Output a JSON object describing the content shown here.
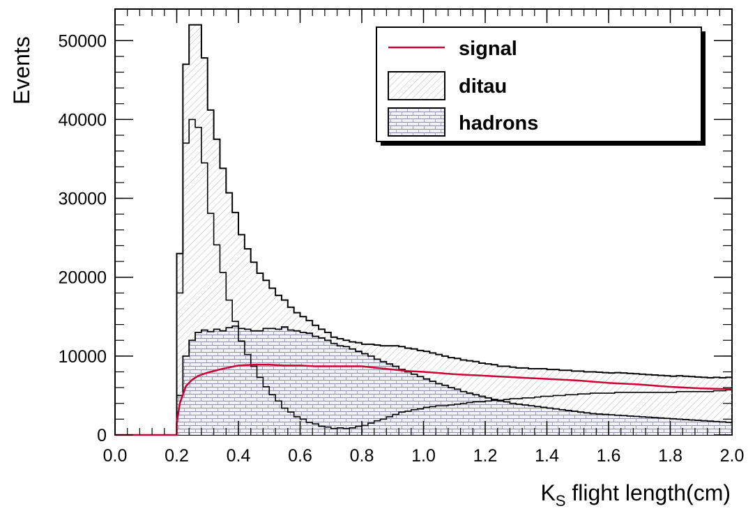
{
  "chart_data": {
    "type": "histogram-stack",
    "xlabel": "K",
    "xlabel_sub": "S",
    "xlabel_rest": " flight length(cm)",
    "ylabel": "Events",
    "xlim": [
      0.0,
      2.0
    ],
    "ylim": [
      0,
      54000
    ],
    "bin_width": 0.02,
    "x_ticks": [
      "0.0",
      "0.2",
      "0.4",
      "0.6",
      "0.8",
      "1.0",
      "1.2",
      "1.4",
      "1.6",
      "1.8",
      "2.0"
    ],
    "x_tick_values": [
      0.0,
      0.2,
      0.4,
      0.6,
      0.8,
      1.0,
      1.2,
      1.4,
      1.6,
      1.8,
      2.0
    ],
    "y_ticks": [
      "0",
      "10000",
      "20000",
      "30000",
      "40000",
      "50000"
    ],
    "y_tick_values": [
      0,
      10000,
      20000,
      30000,
      40000,
      50000
    ],
    "legend_position": "top-right",
    "legend": [
      {
        "label": "signal",
        "kind": "line"
      },
      {
        "label": "ditau",
        "kind": "box"
      },
      {
        "label": "hadrons",
        "kind": "box"
      }
    ],
    "colors": {
      "signal": "#cc0033",
      "outline": "#000000",
      "ditau_hatch": "#a9a9a9",
      "hadrons_hatch": "#5a5a9a"
    },
    "series": [
      {
        "name": "hadrons",
        "x_start": [
          0.2,
          0.22,
          0.24,
          0.26,
          0.28,
          0.3,
          0.32,
          0.34,
          0.36,
          0.38,
          0.4,
          0.42,
          0.44,
          0.46,
          0.48,
          0.5,
          0.52,
          0.54,
          0.56,
          0.58,
          0.6,
          0.62,
          0.64,
          0.66,
          0.68,
          0.7,
          0.72,
          0.74,
          0.76,
          0.78,
          0.8,
          0.82,
          0.84,
          0.86,
          0.88,
          0.9,
          0.92,
          0.94,
          0.96,
          0.98,
          1.0,
          1.02,
          1.04,
          1.06,
          1.08,
          1.1,
          1.12,
          1.14,
          1.16,
          1.18,
          1.2,
          1.22,
          1.24,
          1.26,
          1.28,
          1.3,
          1.32,
          1.34,
          1.36,
          1.38,
          1.4,
          1.42,
          1.44,
          1.46,
          1.48,
          1.5,
          1.52,
          1.54,
          1.56,
          1.58,
          1.6,
          1.62,
          1.64,
          1.66,
          1.68,
          1.7,
          1.72,
          1.74,
          1.76,
          1.78,
          1.8,
          1.82,
          1.84,
          1.86,
          1.88,
          1.9,
          1.92,
          1.94,
          1.96,
          1.98
        ],
        "values": [
          5000,
          10000,
          12000,
          13000,
          13300,
          13100,
          13400,
          13200,
          13600,
          13800,
          13500,
          13400,
          13200,
          13200,
          13500,
          13500,
          13400,
          13700,
          13300,
          13200,
          13000,
          12900,
          12500,
          12300,
          12000,
          11600,
          11300,
          11200,
          10900,
          10600,
          10300,
          10000,
          9600,
          9300,
          9000,
          8700,
          8300,
          8000,
          7700,
          7400,
          7100,
          6800,
          6500,
          6300,
          6000,
          5800,
          5500,
          5300,
          5100,
          4900,
          4700,
          4500,
          4300,
          4200,
          4000,
          3900,
          3800,
          3700,
          3600,
          3500,
          3400,
          3300,
          3200,
          3100,
          3000,
          2900,
          2800,
          2700,
          2650,
          2600,
          2550,
          2500,
          2450,
          2400,
          2350,
          2300,
          2250,
          2200,
          2150,
          2100,
          2050,
          2000,
          1950,
          1900,
          1850,
          1800,
          1750,
          1700,
          1650,
          1600
        ]
      },
      {
        "name": "ditau",
        "x_start": [
          0.2,
          0.22,
          0.24,
          0.26,
          0.28,
          0.3,
          0.32,
          0.34,
          0.36,
          0.38,
          0.4,
          0.42,
          0.44,
          0.46,
          0.48,
          0.5,
          0.52,
          0.54,
          0.56,
          0.58,
          0.6,
          0.62,
          0.64,
          0.66,
          0.68,
          0.7,
          0.72,
          0.74,
          0.76,
          0.78,
          0.8,
          0.82,
          0.84,
          0.86,
          0.88,
          0.9,
          0.92,
          0.94,
          0.96,
          0.98,
          1.0,
          1.02,
          1.04,
          1.06,
          1.08,
          1.1,
          1.12,
          1.14,
          1.16,
          1.18,
          1.2,
          1.22,
          1.24,
          1.26,
          1.28,
          1.3,
          1.32,
          1.34,
          1.36,
          1.38,
          1.4,
          1.42,
          1.44,
          1.46,
          1.48,
          1.5,
          1.52,
          1.54,
          1.56,
          1.58,
          1.6,
          1.62,
          1.64,
          1.66,
          1.68,
          1.7,
          1.72,
          1.74,
          1.76,
          1.78,
          1.8,
          1.82,
          1.84,
          1.86,
          1.88,
          1.9,
          1.92,
          1.94,
          1.96,
          1.98
        ],
        "values": [
          18000,
          37000,
          40000,
          39000,
          34500,
          28100,
          24100,
          20600,
          17100,
          14400,
          11900,
          10200,
          8700,
          7300,
          6100,
          5100,
          4300,
          3400,
          2900,
          2300,
          2000,
          1600,
          1400,
          1100,
          1000,
          800,
          900,
          800,
          900,
          1100,
          1200,
          1500,
          1800,
          2000,
          2300,
          2600,
          2900,
          3000,
          3200,
          3300,
          3500,
          3600,
          3700,
          3700,
          3800,
          3900,
          4000,
          4100,
          4200,
          4200,
          4300,
          4400,
          4400,
          4500,
          4600,
          4600,
          4700,
          4700,
          4800,
          4900,
          4900,
          5000,
          5000,
          5100,
          5100,
          5200,
          5200,
          5300,
          5300,
          5300,
          5300,
          5400,
          5400,
          5400,
          5400,
          5400,
          5400,
          5400,
          5400,
          5400,
          5400,
          5500,
          5500,
          5500,
          5500,
          5500,
          5500,
          5600,
          5600,
          5700
        ]
      },
      {
        "name": "signal",
        "x": [
          0.2,
          0.21,
          0.23,
          0.25,
          0.27,
          0.3,
          0.35,
          0.4,
          0.45,
          0.5,
          0.55,
          0.6,
          0.65,
          0.7,
          0.75,
          0.8,
          0.85,
          0.9,
          0.95,
          1.0,
          1.1,
          1.2,
          1.3,
          1.4,
          1.5,
          1.6,
          1.7,
          1.8,
          1.9,
          2.0
        ],
        "values": [
          1500,
          4000,
          6200,
          7000,
          7500,
          7900,
          8400,
          8800,
          8900,
          8900,
          8800,
          8800,
          8700,
          8700,
          8700,
          8700,
          8500,
          8300,
          8100,
          8000,
          7700,
          7500,
          7300,
          7100,
          6900,
          6600,
          6400,
          6100,
          5900,
          5800
        ]
      }
    ]
  }
}
